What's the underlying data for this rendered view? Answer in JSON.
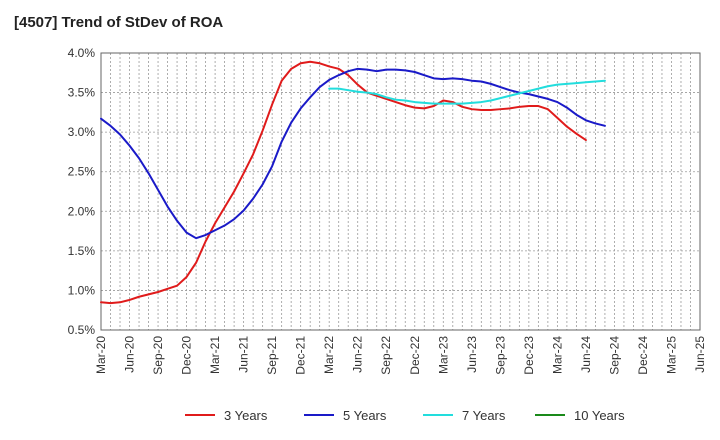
{
  "title": "[4507]  Trend of StDev of ROA",
  "chart_data": {
    "type": "line",
    "title": "[4507]  Trend of StDev of ROA",
    "xlabel": "",
    "ylabel": "",
    "ylim": [
      0.5,
      4.0
    ],
    "y_ticks": [
      "0.5%",
      "1.0%",
      "1.5%",
      "2.0%",
      "2.5%",
      "3.0%",
      "3.5%",
      "4.0%"
    ],
    "y_tick_values": [
      0.5,
      1.0,
      1.5,
      2.0,
      2.5,
      3.0,
      3.5,
      4.0
    ],
    "x_ticks": [
      "Mar-20",
      "Jun-20",
      "Sep-20",
      "Dec-20",
      "Mar-21",
      "Jun-21",
      "Sep-21",
      "Dec-21",
      "Mar-22",
      "Jun-22",
      "Sep-22",
      "Dec-22",
      "Mar-23",
      "Jun-23",
      "Sep-23",
      "Dec-23",
      "Mar-24",
      "Jun-24",
      "Sep-24",
      "Dec-24",
      "Mar-25",
      "Jun-25"
    ],
    "grid": true,
    "legend_position": "bottom",
    "series": [
      {
        "name": "3 Years",
        "color": "#e01b1b",
        "start_index": 0,
        "values": [
          0.85,
          0.84,
          0.85,
          0.88,
          0.92,
          0.95,
          0.98,
          1.02,
          1.06,
          1.17,
          1.35,
          1.62,
          1.85,
          2.05,
          2.25,
          2.48,
          2.72,
          3.02,
          3.35,
          3.65,
          3.8,
          3.87,
          3.89,
          3.87,
          3.83,
          3.8,
          3.72,
          3.6,
          3.5,
          3.46,
          3.42,
          3.38,
          3.34,
          3.31,
          3.3,
          3.33,
          3.4,
          3.38,
          3.32,
          3.29,
          3.28,
          3.28,
          3.29,
          3.3,
          3.32,
          3.33,
          3.33,
          3.29,
          3.18,
          3.07,
          2.98,
          2.9
        ]
      },
      {
        "name": "5 Years",
        "color": "#1a1ac8",
        "start_index": 0,
        "values": [
          3.17,
          3.08,
          2.97,
          2.83,
          2.67,
          2.48,
          2.27,
          2.06,
          1.88,
          1.73,
          1.66,
          1.7,
          1.76,
          1.82,
          1.9,
          2.01,
          2.16,
          2.34,
          2.57,
          2.88,
          3.12,
          3.3,
          3.44,
          3.57,
          3.66,
          3.72,
          3.77,
          3.8,
          3.79,
          3.77,
          3.79,
          3.79,
          3.78,
          3.76,
          3.72,
          3.68,
          3.67,
          3.68,
          3.67,
          3.65,
          3.64,
          3.61,
          3.57,
          3.53,
          3.5,
          3.48,
          3.45,
          3.42,
          3.38,
          3.31,
          3.22,
          3.15,
          3.11,
          3.08
        ]
      },
      {
        "name": "7 Years",
        "color": "#22dddd",
        "start_index": 24,
        "values": [
          3.55,
          3.55,
          3.53,
          3.51,
          3.5,
          3.48,
          3.44,
          3.41,
          3.4,
          3.38,
          3.37,
          3.36,
          3.36,
          3.36,
          3.36,
          3.37,
          3.38,
          3.4,
          3.43,
          3.46,
          3.49,
          3.52,
          3.55,
          3.58,
          3.6,
          3.61,
          3.62,
          3.63,
          3.64,
          3.65
        ]
      },
      {
        "name": "10 Years",
        "color": "#1a8a1a",
        "start_index": 0,
        "values": []
      }
    ]
  }
}
